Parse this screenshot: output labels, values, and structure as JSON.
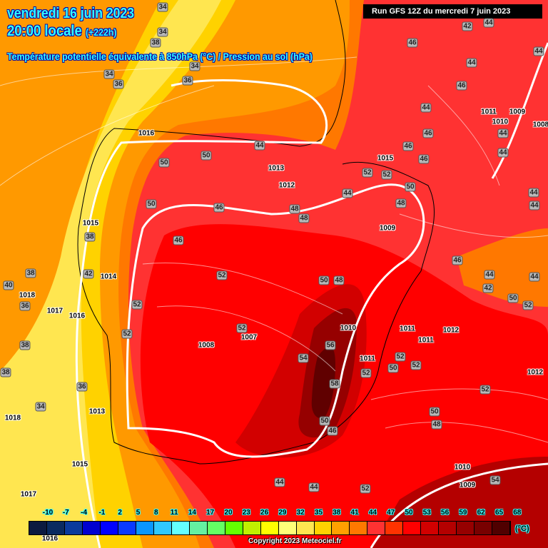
{
  "header": {
    "date": "vendredi 16 juin 2023",
    "time": "20:00 locale",
    "lead": "(+222h)",
    "parameter": "Température potentielle équivalente à 850hPa (°C) / Pression au sol (hPa)",
    "run": "Run GFS 12Z du mercredi 7 juin 2023"
  },
  "colorbar": {
    "ticks": [
      "-10",
      "-7",
      "-4",
      "-1",
      "2",
      "5",
      "8",
      "11",
      "14",
      "17",
      "20",
      "23",
      "26",
      "29",
      "32",
      "35",
      "38",
      "41",
      "44",
      "47",
      "50",
      "53",
      "56",
      "59",
      "62",
      "65",
      "68"
    ],
    "unit": "(°C)",
    "colors": [
      "#0c1a40",
      "#0a2a60",
      "#0a3a9c",
      "#0000d0",
      "#0000ff",
      "#0a3aff",
      "#0a96ff",
      "#30c8ff",
      "#64ffff",
      "#64f0a0",
      "#64ff64",
      "#64ff00",
      "#c0f000",
      "#ffff00",
      "#ffff78",
      "#ffe650",
      "#ffd200",
      "#ffa000",
      "#ff7800",
      "#ff3232",
      "#ff3200",
      "#ff0000",
      "#d20000",
      "#b40000",
      "#960000",
      "#780000",
      "#500000"
    ]
  },
  "copyright": "Copyright 2023 Meteociel.fr",
  "theta_labels": [
    "34",
    "34",
    "38",
    "34",
    "36",
    "34",
    "36",
    "42",
    "44",
    "46",
    "44",
    "44",
    "46",
    "44",
    "46",
    "44",
    "44",
    "46",
    "46",
    "44",
    "50",
    "50",
    "52",
    "52",
    "50",
    "44",
    "48",
    "46",
    "48",
    "48",
    "50",
    "46",
    "44",
    "44",
    "46",
    "44",
    "44",
    "42",
    "50",
    "52",
    "38",
    "40",
    "36",
    "38",
    "42",
    "52",
    "50",
    "48",
    "52",
    "52",
    "52",
    "54",
    "56",
    "58",
    "50",
    "46",
    "52",
    "50",
    "52",
    "52",
    "52",
    "50",
    "48",
    "38",
    "38",
    "36",
    "34",
    "44",
    "44",
    "52",
    "54"
  ],
  "pressure_labels": [
    "1016",
    "1015",
    "1013",
    "1012",
    "1009",
    "1015",
    "1014",
    "1018",
    "1017",
    "1016",
    "1008",
    "1007",
    "1010",
    "1011",
    "1011",
    "1011",
    "1012",
    "1011",
    "1010",
    "1009",
    "1008",
    "1012",
    "1013",
    "1018",
    "1015",
    "1017",
    "1010",
    "1009",
    "1016"
  ]
}
